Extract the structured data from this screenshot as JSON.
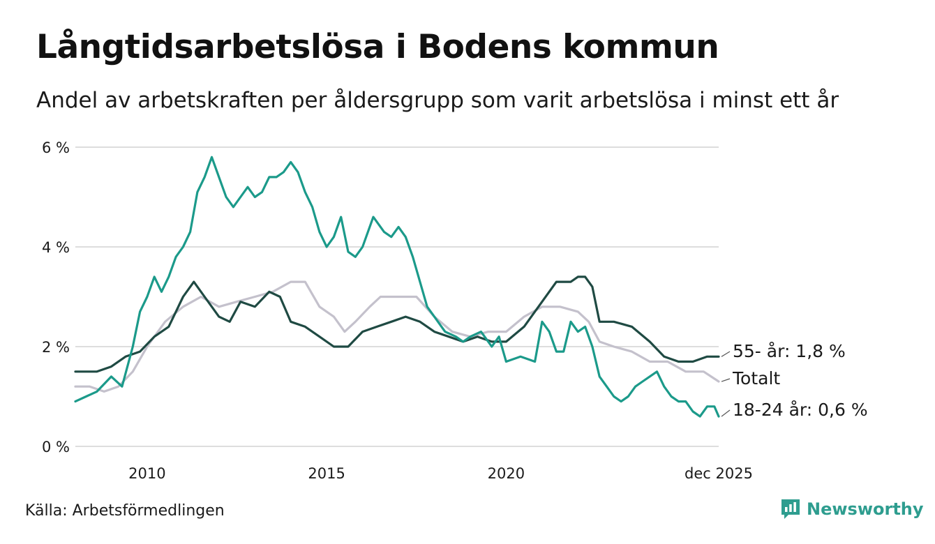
{
  "title": "Långtidsarbetslösa i Bodens kommun",
  "subtitle": "Andel av arbetskraften per åldersgrupp som varit arbetslösa i minst ett år",
  "source": "Källa: Arbetsförmedlingen",
  "brand": "Newsworthy",
  "colors": {
    "young": "#1b9a8a",
    "old": "#1f4a43",
    "total": "#c4c1cc",
    "grid": "#dddddd",
    "brand": "#2e9d8f"
  },
  "chart_data": {
    "type": "line",
    "title": "Långtidsarbetslösa i Bodens kommun",
    "xlabel": "",
    "ylabel": "",
    "ylim": [
      0,
      6
    ],
    "xlim": [
      2008.0,
      2025.92
    ],
    "y_ticks": [
      {
        "value": 0,
        "label": "0 %"
      },
      {
        "value": 2,
        "label": "2 %"
      },
      {
        "value": 4,
        "label": "4 %"
      },
      {
        "value": 6,
        "label": "6 %"
      }
    ],
    "x_ticks": [
      {
        "value": 2010,
        "label": "2010"
      },
      {
        "value": 2015,
        "label": "2015"
      },
      {
        "value": 2020,
        "label": "2020"
      },
      {
        "value": 2025.92,
        "label": "dec 2025"
      }
    ],
    "series": [
      {
        "name": "Totalt",
        "key": "total",
        "end_label": "Totalt",
        "points": [
          [
            2008.0,
            1.2
          ],
          [
            2008.4,
            1.2
          ],
          [
            2008.8,
            1.1
          ],
          [
            2009.2,
            1.2
          ],
          [
            2009.6,
            1.5
          ],
          [
            2010.0,
            2.0
          ],
          [
            2010.5,
            2.5
          ],
          [
            2011.0,
            2.8
          ],
          [
            2011.5,
            3.0
          ],
          [
            2012.0,
            2.8
          ],
          [
            2012.5,
            2.9
          ],
          [
            2013.0,
            3.0
          ],
          [
            2013.5,
            3.1
          ],
          [
            2014.0,
            3.3
          ],
          [
            2014.4,
            3.3
          ],
          [
            2014.8,
            2.8
          ],
          [
            2015.2,
            2.6
          ],
          [
            2015.5,
            2.3
          ],
          [
            2015.8,
            2.5
          ],
          [
            2016.2,
            2.8
          ],
          [
            2016.5,
            3.0
          ],
          [
            2017.0,
            3.0
          ],
          [
            2017.5,
            3.0
          ],
          [
            2018.0,
            2.6
          ],
          [
            2018.5,
            2.3
          ],
          [
            2019.0,
            2.2
          ],
          [
            2019.5,
            2.3
          ],
          [
            2020.0,
            2.3
          ],
          [
            2020.5,
            2.6
          ],
          [
            2021.0,
            2.8
          ],
          [
            2021.5,
            2.8
          ],
          [
            2022.0,
            2.7
          ],
          [
            2022.3,
            2.5
          ],
          [
            2022.6,
            2.1
          ],
          [
            2023.0,
            2.0
          ],
          [
            2023.5,
            1.9
          ],
          [
            2024.0,
            1.7
          ],
          [
            2024.5,
            1.7
          ],
          [
            2025.0,
            1.5
          ],
          [
            2025.5,
            1.5
          ],
          [
            2025.92,
            1.3
          ]
        ]
      },
      {
        "name": "55- år",
        "key": "old",
        "end_label": "55- år: 1,8 %",
        "points": [
          [
            2008.0,
            1.5
          ],
          [
            2008.3,
            1.5
          ],
          [
            2008.6,
            1.5
          ],
          [
            2009.0,
            1.6
          ],
          [
            2009.4,
            1.8
          ],
          [
            2009.8,
            1.9
          ],
          [
            2010.2,
            2.2
          ],
          [
            2010.6,
            2.4
          ],
          [
            2011.0,
            3.0
          ],
          [
            2011.3,
            3.3
          ],
          [
            2011.6,
            3.0
          ],
          [
            2012.0,
            2.6
          ],
          [
            2012.3,
            2.5
          ],
          [
            2012.6,
            2.9
          ],
          [
            2013.0,
            2.8
          ],
          [
            2013.4,
            3.1
          ],
          [
            2013.7,
            3.0
          ],
          [
            2014.0,
            2.5
          ],
          [
            2014.4,
            2.4
          ],
          [
            2014.8,
            2.2
          ],
          [
            2015.2,
            2.0
          ],
          [
            2015.6,
            2.0
          ],
          [
            2016.0,
            2.3
          ],
          [
            2016.4,
            2.4
          ],
          [
            2016.8,
            2.5
          ],
          [
            2017.2,
            2.6
          ],
          [
            2017.6,
            2.5
          ],
          [
            2018.0,
            2.3
          ],
          [
            2018.4,
            2.2
          ],
          [
            2018.8,
            2.1
          ],
          [
            2019.2,
            2.2
          ],
          [
            2019.6,
            2.1
          ],
          [
            2020.0,
            2.1
          ],
          [
            2020.5,
            2.4
          ],
          [
            2021.0,
            2.9
          ],
          [
            2021.4,
            3.3
          ],
          [
            2021.8,
            3.3
          ],
          [
            2022.0,
            3.4
          ],
          [
            2022.2,
            3.4
          ],
          [
            2022.4,
            3.2
          ],
          [
            2022.6,
            2.5
          ],
          [
            2023.0,
            2.5
          ],
          [
            2023.5,
            2.4
          ],
          [
            2024.0,
            2.1
          ],
          [
            2024.4,
            1.8
          ],
          [
            2024.8,
            1.7
          ],
          [
            2025.2,
            1.7
          ],
          [
            2025.6,
            1.8
          ],
          [
            2025.92,
            1.8
          ]
        ]
      },
      {
        "name": "18-24 år",
        "key": "young",
        "end_label": "18-24 år: 0,6 %",
        "points": [
          [
            2008.0,
            0.9
          ],
          [
            2008.3,
            1.0
          ],
          [
            2008.6,
            1.1
          ],
          [
            2009.0,
            1.4
          ],
          [
            2009.3,
            1.2
          ],
          [
            2009.6,
            2.0
          ],
          [
            2009.8,
            2.7
          ],
          [
            2010.0,
            3.0
          ],
          [
            2010.2,
            3.4
          ],
          [
            2010.4,
            3.1
          ],
          [
            2010.6,
            3.4
          ],
          [
            2010.8,
            3.8
          ],
          [
            2011.0,
            4.0
          ],
          [
            2011.2,
            4.3
          ],
          [
            2011.4,
            5.1
          ],
          [
            2011.6,
            5.4
          ],
          [
            2011.8,
            5.8
          ],
          [
            2012.0,
            5.4
          ],
          [
            2012.2,
            5.0
          ],
          [
            2012.4,
            4.8
          ],
          [
            2012.6,
            5.0
          ],
          [
            2012.8,
            5.2
          ],
          [
            2013.0,
            5.0
          ],
          [
            2013.2,
            5.1
          ],
          [
            2013.4,
            5.4
          ],
          [
            2013.6,
            5.4
          ],
          [
            2013.8,
            5.5
          ],
          [
            2014.0,
            5.7
          ],
          [
            2014.2,
            5.5
          ],
          [
            2014.4,
            5.1
          ],
          [
            2014.6,
            4.8
          ],
          [
            2014.8,
            4.3
          ],
          [
            2015.0,
            4.0
          ],
          [
            2015.2,
            4.2
          ],
          [
            2015.4,
            4.6
          ],
          [
            2015.6,
            3.9
          ],
          [
            2015.8,
            3.8
          ],
          [
            2016.0,
            4.0
          ],
          [
            2016.3,
            4.6
          ],
          [
            2016.6,
            4.3
          ],
          [
            2016.8,
            4.2
          ],
          [
            2017.0,
            4.4
          ],
          [
            2017.2,
            4.2
          ],
          [
            2017.4,
            3.8
          ],
          [
            2017.6,
            3.3
          ],
          [
            2017.8,
            2.8
          ],
          [
            2018.0,
            2.6
          ],
          [
            2018.3,
            2.3
          ],
          [
            2018.6,
            2.2
          ],
          [
            2018.8,
            2.1
          ],
          [
            2019.0,
            2.2
          ],
          [
            2019.3,
            2.3
          ],
          [
            2019.6,
            2.0
          ],
          [
            2019.8,
            2.2
          ],
          [
            2020.0,
            1.7
          ],
          [
            2020.4,
            1.8
          ],
          [
            2020.8,
            1.7
          ],
          [
            2021.0,
            2.5
          ],
          [
            2021.2,
            2.3
          ],
          [
            2021.4,
            1.9
          ],
          [
            2021.6,
            1.9
          ],
          [
            2021.8,
            2.5
          ],
          [
            2022.0,
            2.3
          ],
          [
            2022.2,
            2.4
          ],
          [
            2022.4,
            2.0
          ],
          [
            2022.6,
            1.4
          ],
          [
            2022.8,
            1.2
          ],
          [
            2023.0,
            1.0
          ],
          [
            2023.2,
            0.9
          ],
          [
            2023.4,
            1.0
          ],
          [
            2023.6,
            1.2
          ],
          [
            2023.8,
            1.3
          ],
          [
            2024.0,
            1.4
          ],
          [
            2024.2,
            1.5
          ],
          [
            2024.4,
            1.2
          ],
          [
            2024.6,
            1.0
          ],
          [
            2024.8,
            0.9
          ],
          [
            2025.0,
            0.9
          ],
          [
            2025.2,
            0.7
          ],
          [
            2025.4,
            0.6
          ],
          [
            2025.6,
            0.8
          ],
          [
            2025.8,
            0.8
          ],
          [
            2025.92,
            0.6
          ]
        ]
      }
    ]
  }
}
